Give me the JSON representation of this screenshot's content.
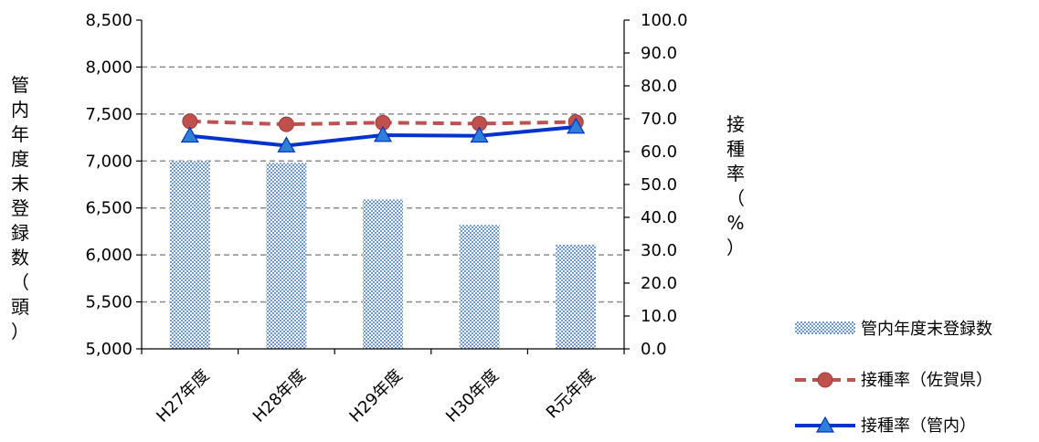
{
  "chart_data": {
    "type": "bar",
    "categories": [
      "H27年度",
      "H28年度",
      "H29年度",
      "H30年度",
      "R元年度"
    ],
    "y_left": {
      "label": "管内年度末登録数（頭）",
      "ylim": [
        5000,
        8500
      ],
      "ticks": [
        "5,000",
        "5,500",
        "6,000",
        "6,500",
        "7,000",
        "7,500",
        "8,000",
        "8,500"
      ]
    },
    "y_right": {
      "label": "接種率（%）",
      "ylim": [
        0,
        100
      ],
      "ticks": [
        "0.0",
        "10.0",
        "20.0",
        "30.0",
        "40.0",
        "50.0",
        "60.0",
        "70.0",
        "80.0",
        "90.0",
        "100.0"
      ]
    },
    "grid": "horizontal dashed",
    "legend_position": "right",
    "series": [
      {
        "name": "管内年度末登録数",
        "type": "bar",
        "axis": "left",
        "color": "#4f81bd",
        "values": [
          7000,
          6980,
          6590,
          6320,
          6110
        ]
      },
      {
        "name": "接種率（佐賀県）",
        "type": "line",
        "axis": "right",
        "color": "#c0504d",
        "line_style": "dashed",
        "marker": "circle",
        "values": [
          69.2,
          68.3,
          68.8,
          68.5,
          69.0
        ]
      },
      {
        "name": "接種率（管内）",
        "type": "line",
        "axis": "right",
        "color": "#0033cc",
        "line_style": "solid",
        "marker": "triangle",
        "values": [
          64.8,
          61.8,
          65.0,
          64.8,
          67.5
        ]
      }
    ]
  }
}
